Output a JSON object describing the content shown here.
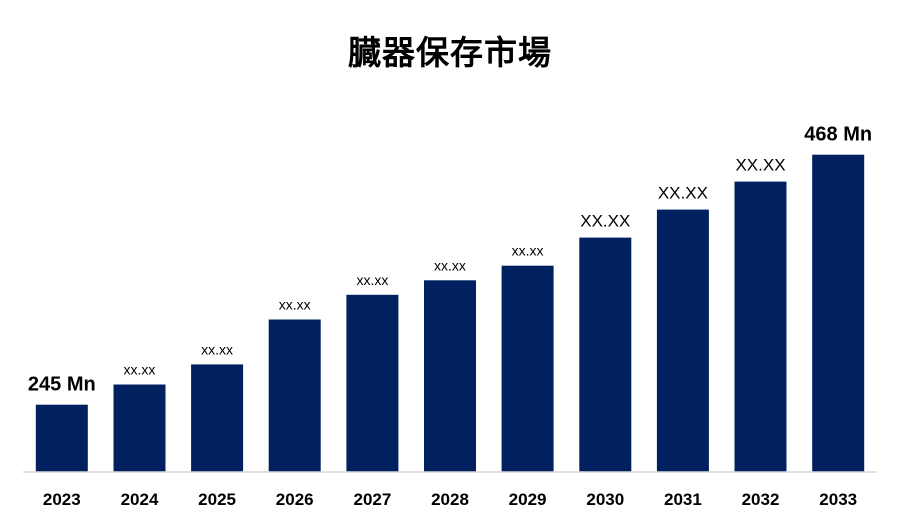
{
  "chart_data": {
    "type": "bar",
    "title": "臓器保存市場",
    "xlabel": "",
    "ylabel": "",
    "categories": [
      "2023",
      "2024",
      "2025",
      "2026",
      "2027",
      "2028",
      "2029",
      "2030",
      "2031",
      "2032",
      "2033"
    ],
    "values": [
      245,
      263,
      281,
      321,
      343,
      356,
      369,
      394,
      419,
      444,
      468
    ],
    "data_labels": [
      "245 Mn",
      "xx.xx",
      "xx.xx",
      "xx.xx",
      "xx.xx",
      "xx.xx",
      "xx.xx",
      "XX.XX",
      "XX.XX",
      "XX.XX",
      "468 Mn"
    ],
    "ylim": [
      185,
      490
    ],
    "grid": false,
    "bar_color": "#002060",
    "axis_color": "#d9d9d9"
  }
}
